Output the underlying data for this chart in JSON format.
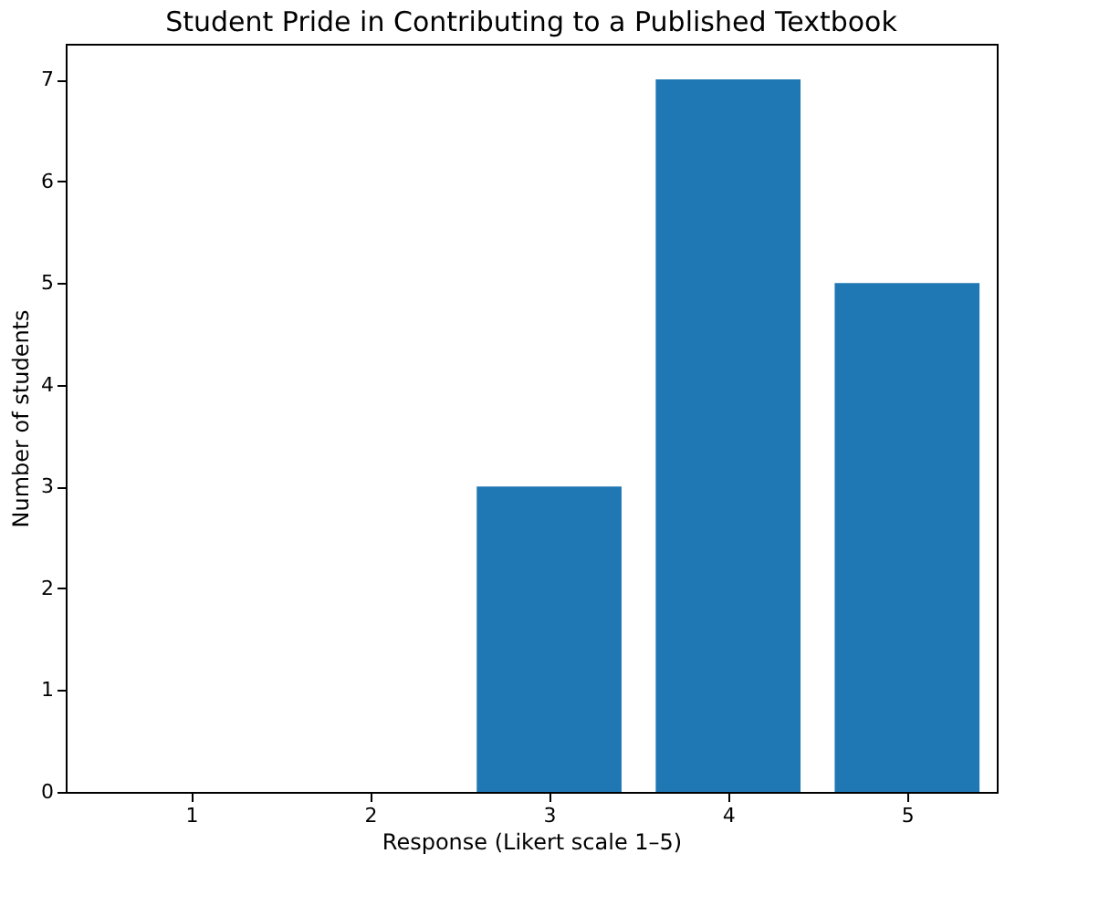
{
  "chart_data": {
    "type": "bar",
    "title": "Student Pride in Contributing to a Published Textbook",
    "xlabel": "Response (Likert scale 1–5)",
    "ylabel": "Number of students",
    "categories": [
      "1",
      "2",
      "3",
      "4",
      "5"
    ],
    "values": [
      0,
      0,
      3,
      7,
      5
    ],
    "color": "#1f77b4",
    "ylim": [
      0,
      7.35
    ],
    "yticks": [
      0,
      1,
      2,
      3,
      4,
      5,
      6,
      7
    ],
    "grid": false
  }
}
